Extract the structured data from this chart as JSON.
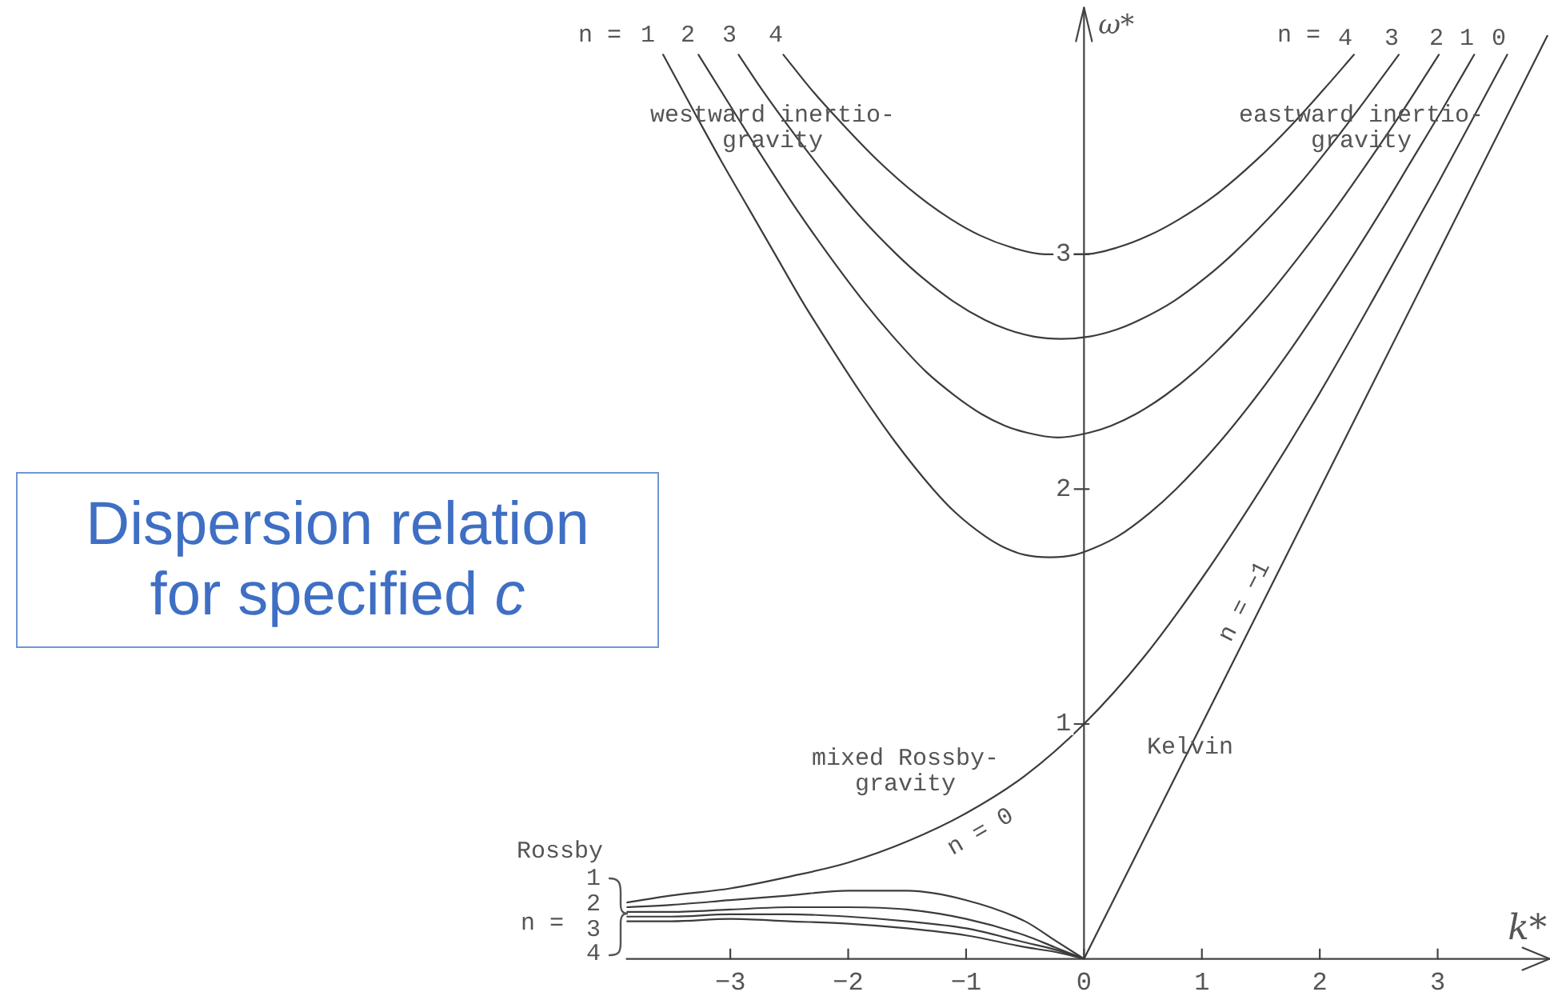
{
  "chart_data": {
    "type": "line",
    "title": "Dispersion relation for specified c",
    "xlabel": "k*",
    "ylabel": "ω*",
    "xlim": [
      -3.88,
      3.95
    ],
    "ylim": [
      0,
      4.05
    ],
    "xticks": [
      -3,
      -2,
      -1,
      0,
      1,
      2,
      3
    ],
    "yticks": [
      1,
      2,
      3
    ],
    "marker": "none",
    "annotations": [
      "n =",
      "1",
      "2",
      "3",
      "4",
      "westward inertio-gravity",
      "n =",
      "4",
      "3",
      "2",
      "1",
      "0",
      "eastward inertio-gravity",
      "mixed Rossby-gravity",
      "n = 0",
      "Kelvin",
      "n = −1",
      "Rossby",
      "1",
      "2",
      "3",
      "4",
      "n ="
    ],
    "series": [
      {
        "color": "#3c3c3c",
        "x": [
          -3.57,
          -3.3,
          -3.08,
          -2.85,
          -2.62,
          -2.39,
          -2.14,
          -1.88,
          -1.6,
          -1.28,
          -1.09,
          -0.84,
          -0.67,
          -0.5,
          -0.29,
          -0.08,
          0.09,
          0.29,
          0.56,
          0.78,
          1.15,
          1.47,
          1.76,
          2.03,
          2.29,
          2.54,
          2.78,
          3.02,
          3.31
        ],
        "values": [
          3.85,
          3.6,
          3.4,
          3.2,
          3,
          2.8,
          2.6,
          2.4,
          2.2,
          2,
          1.9,
          1.8,
          1.75,
          1.72,
          1.71,
          1.72,
          1.75,
          1.8,
          1.9,
          2,
          2.2,
          2.4,
          2.6,
          2.8,
          3,
          3.2,
          3.4,
          3.6,
          3.85
        ]
      },
      {
        "color": "#3c3c3c",
        "x": [
          -3.27,
          -2.96,
          -2.71,
          -2.45,
          -2.17,
          -1.87,
          -1.62,
          -1.34,
          -1.1,
          -0.87,
          -0.67,
          -0.48,
          -0.22,
          0.04,
          0.23,
          0.44,
          0.69,
          0.94,
          1.25,
          1.52,
          1.84,
          2.14,
          2.42,
          2.69,
          3.01
        ],
        "values": [
          3.85,
          3.6,
          3.4,
          3.2,
          3,
          2.8,
          2.65,
          2.5,
          2.4,
          2.32,
          2.27,
          2.24,
          2.22,
          2.24,
          2.27,
          2.32,
          2.4,
          2.5,
          2.65,
          2.8,
          3,
          3.2,
          3.4,
          3.6,
          3.85
        ]
      },
      {
        "color": "#3c3c3c",
        "x": [
          -2.93,
          -2.73,
          -2.44,
          -2.13,
          -1.88,
          -1.59,
          -1.37,
          -1.11,
          -0.84,
          -0.65,
          -0.43,
          -0.19,
          0.05,
          0.28,
          0.47,
          0.76,
          1.03,
          1.26,
          1.56,
          1.83,
          2.15,
          2.45,
          2.67
        ],
        "values": [
          3.85,
          3.7,
          3.5,
          3.3,
          3.15,
          3,
          2.9,
          2.8,
          2.72,
          2.68,
          2.65,
          2.64,
          2.65,
          2.68,
          2.72,
          2.8,
          2.9,
          3,
          3.15,
          3.3,
          3.5,
          3.7,
          3.85
        ]
      },
      {
        "color": "#3c3c3c",
        "x": [
          -2.55,
          -2.31,
          -2.04,
          -1.75,
          -1.41,
          -1.13,
          -0.88,
          -0.62,
          -0.33,
          -0.17,
          0,
          0.29,
          0.55,
          0.81,
          1.11,
          1.46,
          1.76,
          2.03,
          2.29
        ],
        "values": [
          3.85,
          3.7,
          3.55,
          3.4,
          3.25,
          3.15,
          3.08,
          3.03,
          3,
          3,
          3,
          3.03,
          3.08,
          3.15,
          3.25,
          3.4,
          3.55,
          3.7,
          3.85
        ]
      },
      {
        "color": "#3c3c3c",
        "x": [
          -3.88,
          -3.5,
          -3,
          -2.5,
          -2,
          -1.5,
          -1,
          -0.5,
          0,
          0.5,
          1,
          1.5,
          2,
          2.5,
          3,
          3.59
        ],
        "values": [
          0.24,
          0.27,
          0.3,
          0.35,
          0.41,
          0.5,
          0.62,
          0.78,
          1,
          1.28,
          1.62,
          2,
          2.41,
          2.85,
          3.3,
          3.85
        ]
      },
      {
        "color": "#3c3c3c",
        "x": [
          0,
          3.93
        ],
        "values": [
          0,
          3.93
        ]
      },
      {
        "color": "#3c3c3c",
        "x": [
          -3.88,
          -3.5,
          -3,
          -2.5,
          -2,
          -1.5,
          -1,
          -0.5,
          -0.25,
          0
        ],
        "values": [
          0.22,
          0.23,
          0.25,
          0.27,
          0.29,
          0.29,
          0.25,
          0.16,
          0.08,
          0
        ]
      },
      {
        "color": "#3c3c3c",
        "x": [
          -3.88,
          -3.5,
          -3,
          -2.5,
          -2,
          -1.5,
          -1,
          -0.5,
          -0.25,
          0
        ],
        "values": [
          0.2,
          0.2,
          0.21,
          0.22,
          0.22,
          0.21,
          0.17,
          0.1,
          0.05,
          0
        ]
      },
      {
        "color": "#3c3c3c",
        "x": [
          -3.88,
          -3.5,
          -3,
          -2.5,
          -2,
          -1.5,
          -1,
          -0.5,
          -0.25,
          0
        ],
        "values": [
          0.18,
          0.18,
          0.19,
          0.19,
          0.18,
          0.16,
          0.13,
          0.07,
          0.04,
          0
        ]
      },
      {
        "color": "#3c3c3c",
        "x": [
          -3.88,
          -3.5,
          -3,
          -2.5,
          -2,
          -1.5,
          -1,
          -0.5,
          -0.25,
          0
        ],
        "values": [
          0.16,
          0.16,
          0.17,
          0.16,
          0.15,
          0.13,
          0.1,
          0.05,
          0.03,
          0
        ]
      }
    ]
  }
}
